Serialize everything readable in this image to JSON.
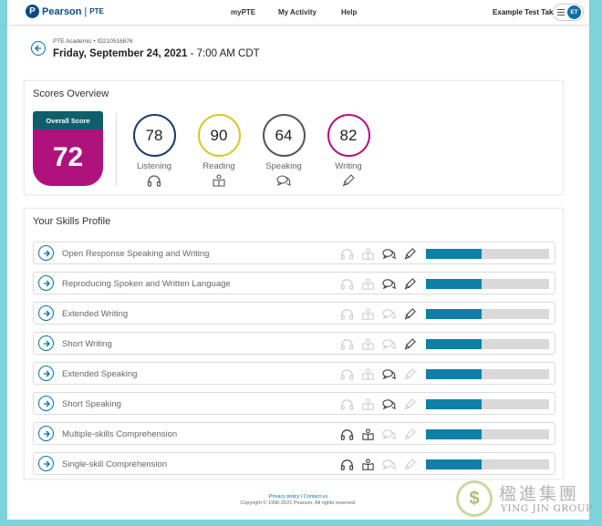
{
  "header": {
    "brand": "Pearson",
    "product": "PTE",
    "nav": [
      "myPTE",
      "My Activity",
      "Help"
    ],
    "user_name": "Example Test Taker",
    "user_initials": "ET"
  },
  "exam": {
    "meta": "PTE Academic • ID210516876",
    "date": "Friday, September 24, 2021",
    "time": " - 7:00 AM CDT"
  },
  "overview": {
    "title": "Scores Overview",
    "overall_label": "Overall Score",
    "overall_value": "72",
    "scores": [
      {
        "label": "Listening",
        "value": "78",
        "color": "#1a3a6b",
        "icon": "headphones-icon"
      },
      {
        "label": "Reading",
        "value": "90",
        "color": "#d4c92a",
        "icon": "open-book-icon"
      },
      {
        "label": "Speaking",
        "value": "64",
        "color": "#555555",
        "icon": "speech-bubbles-icon"
      },
      {
        "label": "Writing",
        "value": "82",
        "color": "#b0127d",
        "icon": "pen-icon"
      }
    ]
  },
  "skills": {
    "title": "Your Skills Profile",
    "accent_color": "#0f7fa8",
    "rows": [
      {
        "label": "Open Response Speaking and Writing",
        "fill": 0.45,
        "active": [
          false,
          false,
          true,
          true
        ]
      },
      {
        "label": "Reproducing Spoken and Written Language",
        "fill": 0.45,
        "active": [
          false,
          false,
          true,
          true
        ]
      },
      {
        "label": "Extended Writing",
        "fill": 0.45,
        "active": [
          false,
          false,
          false,
          true
        ]
      },
      {
        "label": "Short Writing",
        "fill": 0.45,
        "active": [
          false,
          false,
          false,
          true
        ]
      },
      {
        "label": "Extended Speaking",
        "fill": 0.45,
        "active": [
          false,
          false,
          true,
          false
        ]
      },
      {
        "label": "Short Speaking",
        "fill": 0.45,
        "active": [
          false,
          false,
          true,
          false
        ]
      },
      {
        "label": "Multiple-skills Comprehension",
        "fill": 0.45,
        "active": [
          true,
          true,
          false,
          false
        ]
      },
      {
        "label": "Single-skill Comprehension",
        "fill": 0.45,
        "active": [
          true,
          true,
          false,
          false
        ]
      }
    ]
  },
  "footer": {
    "links": "Privacy policy | Contact us",
    "copyright": "Copyright © 1996-2021 Pearson. All rights reserved."
  },
  "watermark": {
    "chinese": "楹進集團",
    "english": "YING JIN GROUP"
  }
}
